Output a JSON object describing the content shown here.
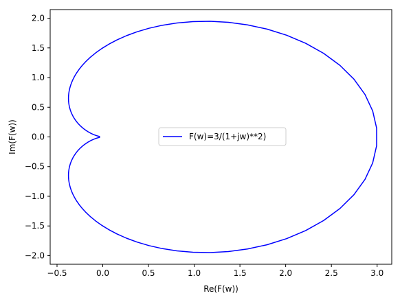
{
  "chart_data": {
    "type": "line",
    "title": "",
    "xlabel": "Re(F(w))",
    "ylabel": "Im(F(w))",
    "xlim": [
      -0.575,
      3.16
    ],
    "ylim": [
      -2.145,
      2.145
    ],
    "xticks": [
      {
        "value": -0.5,
        "label": "−0.5"
      },
      {
        "value": 0.0,
        "label": "0.0"
      },
      {
        "value": 0.5,
        "label": "0.5"
      },
      {
        "value": 1.0,
        "label": "1.0"
      },
      {
        "value": 1.5,
        "label": "1.5"
      },
      {
        "value": 2.0,
        "label": "2.0"
      },
      {
        "value": 2.5,
        "label": "2.5"
      },
      {
        "value": 3.0,
        "label": "3.0"
      }
    ],
    "yticks": [
      {
        "value": -2.0,
        "label": "−2.0"
      },
      {
        "value": -1.5,
        "label": "−1.5"
      },
      {
        "value": -1.0,
        "label": "−1.0"
      },
      {
        "value": -0.5,
        "label": "−0.5"
      },
      {
        "value": 0.0,
        "label": "0.0"
      },
      {
        "value": 0.5,
        "label": "0.5"
      },
      {
        "value": 1.0,
        "label": "1.0"
      },
      {
        "value": 1.5,
        "label": "1.5"
      },
      {
        "value": 2.0,
        "label": "2.0"
      }
    ],
    "grid": false,
    "legend_position": "center",
    "series": [
      {
        "name": "F(w)=3/(1+jw)**2)",
        "color": "#0000ff",
        "function": "F(w) = 3 / (1 + j*w)^2",
        "w_range": [
          -9.8,
          9.8
        ],
        "sample_count": 400
      }
    ]
  }
}
